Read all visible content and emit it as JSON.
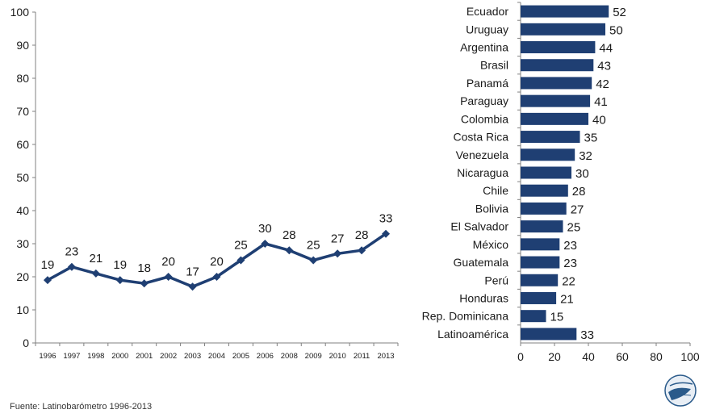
{
  "source": "Fuente: Latinobarómetro 1996-2013",
  "colors": {
    "series": "#1f3f73",
    "axis": "#808080",
    "text": "#1a1a1a"
  },
  "chart_data": [
    {
      "type": "line",
      "x": [
        "1996",
        "1997",
        "1998",
        "2000",
        "2001",
        "2002",
        "2003",
        "2004",
        "2005",
        "2006",
        "2008",
        "2009",
        "2010",
        "2011",
        "2013"
      ],
      "values": [
        19,
        23,
        21,
        19,
        18,
        20,
        17,
        20,
        25,
        30,
        28,
        25,
        27,
        28,
        33
      ],
      "ylim": [
        0,
        100
      ],
      "yticks": [
        0,
        10,
        20,
        30,
        40,
        50,
        60,
        70,
        80,
        90,
        100
      ],
      "grid": false,
      "data_labels": true
    },
    {
      "type": "bar",
      "orientation": "horizontal",
      "categories": [
        "Ecuador",
        "Uruguay",
        "Argentina",
        "Brasil",
        "Panamá",
        "Paraguay",
        "Colombia",
        "Costa Rica",
        "Venezuela",
        "Nicaragua",
        "Chile",
        "Bolivia",
        "El Salvador",
        "México",
        "Guatemala",
        "Perú",
        "Honduras",
        "Rep. Dominicana",
        "Latinoamérica"
      ],
      "values": [
        52,
        50,
        44,
        43,
        42,
        41,
        40,
        35,
        32,
        30,
        28,
        27,
        25,
        23,
        23,
        22,
        21,
        15,
        33
      ],
      "xlim": [
        0,
        100
      ],
      "xticks": [
        0,
        20,
        40,
        60,
        80,
        100
      ],
      "grid": false,
      "data_labels": true
    }
  ]
}
